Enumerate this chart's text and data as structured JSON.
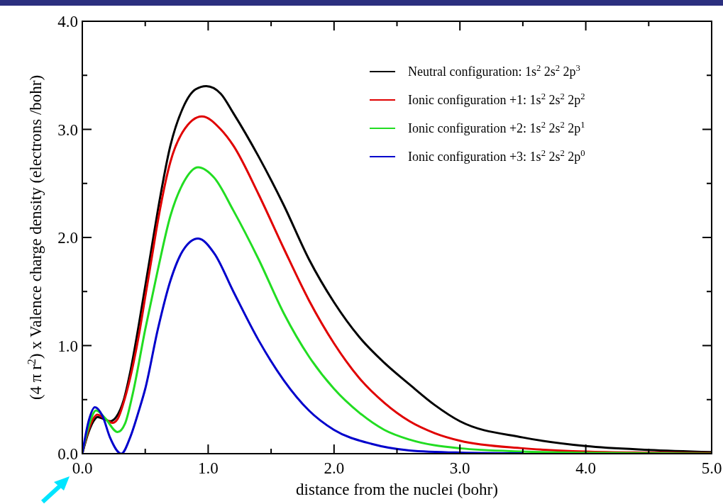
{
  "chart_data": {
    "type": "line",
    "xlabel": "distance from the nuclei (bohr)",
    "ylabel": "(4 π r$^{2}$) x Valence charge density (electrons /bohr)",
    "xlim": [
      0,
      5
    ],
    "ylim": [
      0,
      4
    ],
    "xticks": [
      {
        "value": 0,
        "label": "0.0"
      },
      {
        "value": 0.5,
        "label": null
      },
      {
        "value": 1,
        "label": "1.0"
      },
      {
        "value": 1.5,
        "label": null
      },
      {
        "value": 2,
        "label": "2.0"
      },
      {
        "value": 2.5,
        "label": null
      },
      {
        "value": 3,
        "label": "3.0"
      },
      {
        "value": 3.5,
        "label": null
      },
      {
        "value": 4,
        "label": "4.0"
      },
      {
        "value": 4.5,
        "label": null
      },
      {
        "value": 5,
        "label": "5.0"
      }
    ],
    "yticks": [
      {
        "value": 0,
        "label": "0.0"
      },
      {
        "value": 0.5,
        "label": null
      },
      {
        "value": 1,
        "label": "1.0"
      },
      {
        "value": 1.5,
        "label": null
      },
      {
        "value": 2,
        "label": "2.0"
      },
      {
        "value": 2.5,
        "label": null
      },
      {
        "value": 3,
        "label": "3.0"
      },
      {
        "value": 3.5,
        "label": null
      },
      {
        "value": 4,
        "label": "4.0"
      }
    ],
    "grid": false,
    "legend": "top right",
    "line_style": "solid",
    "series": [
      {
        "name": "Neutral configuration: 1s$^{2}$ 2s$^{2}$ 2p$^{3}$",
        "color": "#000000",
        "x": [
          0,
          0.05,
          0.1,
          0.12,
          0.17,
          0.22,
          0.27,
          0.33,
          0.38,
          0.45,
          0.5,
          0.55,
          0.6,
          0.7,
          0.8,
          0.9,
          0.985,
          1.1,
          1.2,
          1.4,
          1.6,
          1.8,
          2.0,
          2.2,
          2.4,
          2.6,
          2.8,
          3.0,
          3.5,
          4.0,
          4.5,
          5.0
        ],
        "values": [
          0,
          0.2,
          0.32,
          0.34,
          0.32,
          0.3,
          0.34,
          0.5,
          0.75,
          1.2,
          1.55,
          1.9,
          2.25,
          2.85,
          3.2,
          3.37,
          3.4,
          3.33,
          3.15,
          2.75,
          2.3,
          1.8,
          1.4,
          1.08,
          0.84,
          0.64,
          0.45,
          0.3,
          0.15,
          0.07,
          0.035,
          0.015
        ]
      },
      {
        "name": "Ionic configuration +1: 1s$^{2}$ 2s$^{2}$ 2p$^{2}$",
        "color": "#e00000",
        "x": [
          0,
          0.05,
          0.12,
          0.17,
          0.24,
          0.28,
          0.335,
          0.39,
          0.45,
          0.5,
          0.55,
          0.6,
          0.7,
          0.8,
          0.95,
          1.1,
          1.2,
          1.4,
          1.6,
          1.8,
          2.0,
          2.2,
          2.4,
          2.6,
          2.8,
          3.0,
          3.5,
          4.0,
          4.5,
          5.0
        ],
        "values": [
          0,
          0.22,
          0.36,
          0.33,
          0.285,
          0.32,
          0.5,
          0.75,
          1.1,
          1.45,
          1.8,
          2.15,
          2.7,
          2.98,
          3.12,
          3.0,
          2.85,
          2.4,
          1.9,
          1.42,
          1.02,
          0.7,
          0.47,
          0.3,
          0.19,
          0.12,
          0.05,
          0.02,
          0.01,
          0.005
        ]
      },
      {
        "name": "Ionic configuration +2: 1s$^{2}$ 2s$^{2}$ 2p$^{1}$",
        "color": "#22dd22",
        "x": [
          0,
          0.05,
          0.11,
          0.18,
          0.28,
          0.34,
          0.4,
          0.5,
          0.6,
          0.7,
          0.8,
          0.92,
          1.05,
          1.2,
          1.4,
          1.6,
          1.8,
          2.0,
          2.2,
          2.4,
          2.6,
          3.0,
          3.5,
          4.0,
          5.0
        ],
        "values": [
          0,
          0.25,
          0.4,
          0.33,
          0.2,
          0.28,
          0.55,
          1.15,
          1.7,
          2.2,
          2.5,
          2.65,
          2.55,
          2.25,
          1.8,
          1.3,
          0.9,
          0.6,
          0.38,
          0.22,
          0.13,
          0.05,
          0.02,
          0.008,
          0
        ]
      },
      {
        "name": "Ionic configuration +3: 1s$^{2}$ 2s$^{2}$ 2p$^{0}$",
        "color": "#0000cc",
        "x": [
          0,
          0.05,
          0.1,
          0.16,
          0.22,
          0.31,
          0.38,
          0.45,
          0.5,
          0.6,
          0.7,
          0.8,
          0.92,
          1.05,
          1.2,
          1.4,
          1.6,
          1.8,
          2.0,
          2.3,
          2.6,
          3.0,
          3.5
        ],
        "values": [
          0,
          0.3,
          0.43,
          0.35,
          0.15,
          0,
          0.15,
          0.4,
          0.6,
          1.15,
          1.6,
          1.88,
          1.99,
          1.85,
          1.5,
          1.05,
          0.68,
          0.4,
          0.22,
          0.09,
          0.03,
          0.01,
          0.003
        ]
      }
    ]
  }
}
